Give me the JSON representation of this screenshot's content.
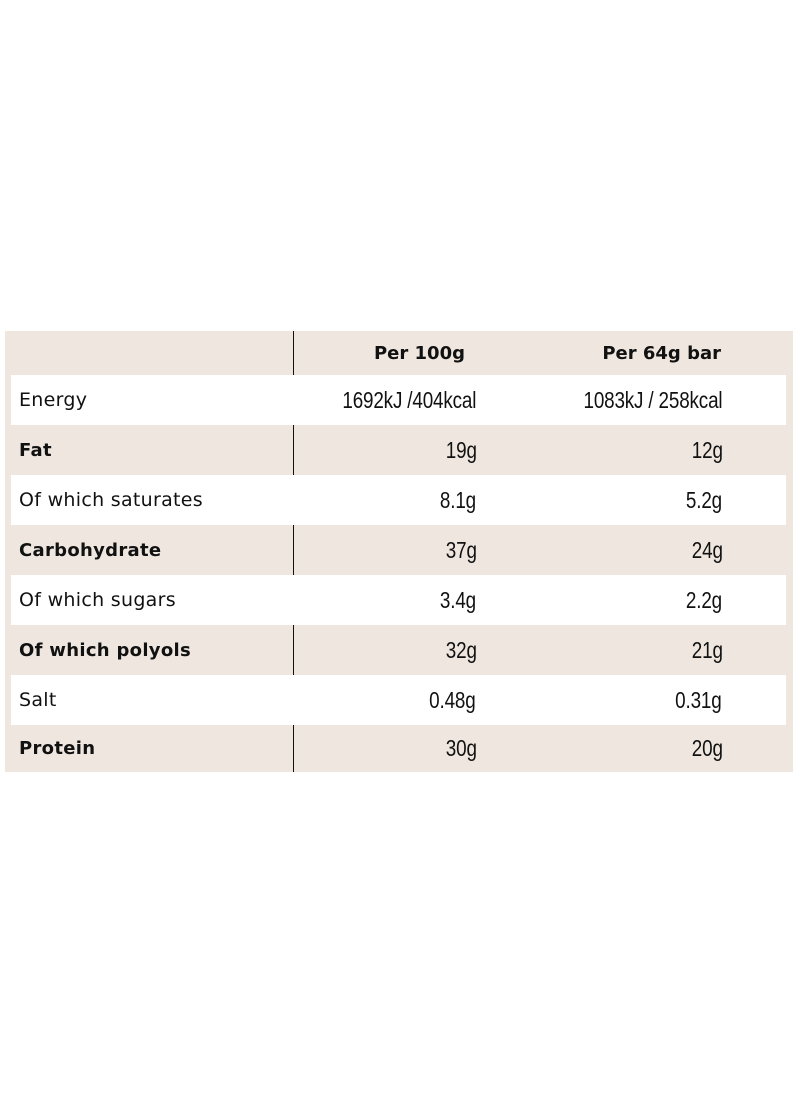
{
  "table": {
    "headers": [
      "",
      "Per 100g",
      "Per 64g bar"
    ],
    "rows": [
      {
        "label": "Energy",
        "bold": false,
        "per100": "1692kJ /404kcal",
        "perBar": "1083kJ / 258kcal"
      },
      {
        "label": "Fat",
        "bold": true,
        "per100": "19g",
        "perBar": "12g"
      },
      {
        "label": "Of which saturates",
        "bold": false,
        "per100": "8.1g",
        "perBar": "5.2g"
      },
      {
        "label": "Carbohydrate",
        "bold": true,
        "per100": "37g",
        "perBar": "24g"
      },
      {
        "label": "Of which sugars",
        "bold": false,
        "per100": "3.4g",
        "perBar": "2.2g"
      },
      {
        "label": "Of which polyols",
        "bold": true,
        "per100": "32g",
        "perBar": "21g"
      },
      {
        "label": "Salt",
        "bold": false,
        "per100": "0.48g",
        "perBar": "0.31g"
      },
      {
        "label": "Protein",
        "bold": true,
        "per100": "30g",
        "perBar": "20g"
      }
    ]
  },
  "colors": {
    "shaded_row": "#efe7df",
    "white_row": "#ffffff",
    "divider": "#111111"
  }
}
